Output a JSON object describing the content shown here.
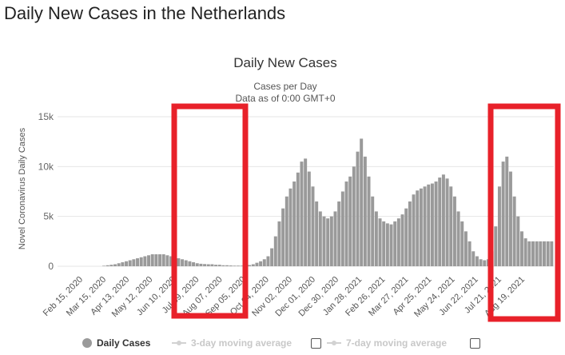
{
  "page": {
    "title": "Daily New Cases in the Netherlands"
  },
  "chart_data": {
    "type": "bar",
    "title": "Daily New Cases",
    "subtitle_1": "Cases per Day",
    "subtitle_2": "Data as of 0:00 GMT+0",
    "ylabel": "Novel Coronavirus Daily Cases",
    "ylim": [
      0,
      15000
    ],
    "y_ticks": [
      0,
      5000,
      10000,
      15000
    ],
    "y_tick_labels": [
      "0",
      "5k",
      "10k",
      "15k"
    ],
    "x_tick_labels": [
      "Feb 15, 2020",
      "Mar 15, 2020",
      "Apr 13, 2020",
      "May 12, 2020",
      "Jun 10, 2020",
      "Jul 09, 2020",
      "Aug 07, 2020",
      "Sep 05, 2020",
      "Oct 04, 2020",
      "Nov 02, 2020",
      "Dec 01, 2020",
      "Dec 30, 2020",
      "Jan 28, 2021",
      "Feb 26, 2021",
      "Mar 27, 2021",
      "Apr 25, 2021",
      "May 24, 2021",
      "Jun 22, 2021",
      "Jul 21, 2021",
      "Aug 19, 2021"
    ],
    "grid": true,
    "bar_color": "#9a9a9a",
    "series": [
      {
        "name": "Daily Cases",
        "x_start": "Feb 15, 2020",
        "x_end": "Sep 06, 2021",
        "values": [
          0,
          0,
          0,
          0,
          0,
          0,
          0,
          0,
          0,
          0,
          0,
          0,
          50,
          100,
          150,
          200,
          300,
          400,
          500,
          600,
          700,
          800,
          900,
          1000,
          1100,
          1200,
          1200,
          1200,
          1200,
          1100,
          1000,
          900,
          800,
          700,
          600,
          500,
          400,
          300,
          250,
          220,
          200,
          200,
          150,
          150,
          100,
          100,
          80,
          60,
          60,
          60,
          80,
          120,
          200,
          350,
          500,
          700,
          1000,
          1800,
          3000,
          4500,
          5800,
          7000,
          7800,
          8500,
          9400,
          10500,
          10800,
          9500,
          8000,
          6500,
          5500,
          5000,
          4800,
          5000,
          5500,
          6500,
          7500,
          8500,
          9000,
          10000,
          11500,
          12800,
          11000,
          9000,
          7000,
          5500,
          4800,
          4500,
          4300,
          4200,
          4500,
          4800,
          5200,
          5800,
          6500,
          7200,
          7600,
          7800,
          8000,
          8200,
          8300,
          8500,
          8900,
          9200,
          8800,
          8000,
          7000,
          5500,
          4500,
          3500,
          2500,
          1500,
          1000,
          700,
          600,
          700,
          1500,
          4000,
          8000,
          10500,
          11000,
          9500,
          7000,
          5000,
          3500,
          2800,
          2500,
          2500,
          2500,
          2500,
          2500,
          2500,
          2500
        ]
      }
    ],
    "legend": [
      {
        "label": "Daily Cases",
        "active": true
      },
      {
        "label": "3-day moving average",
        "active": false
      },
      {
        "label": "7-day moving average",
        "active": false
      }
    ],
    "highlight_color": "#e8212a"
  }
}
